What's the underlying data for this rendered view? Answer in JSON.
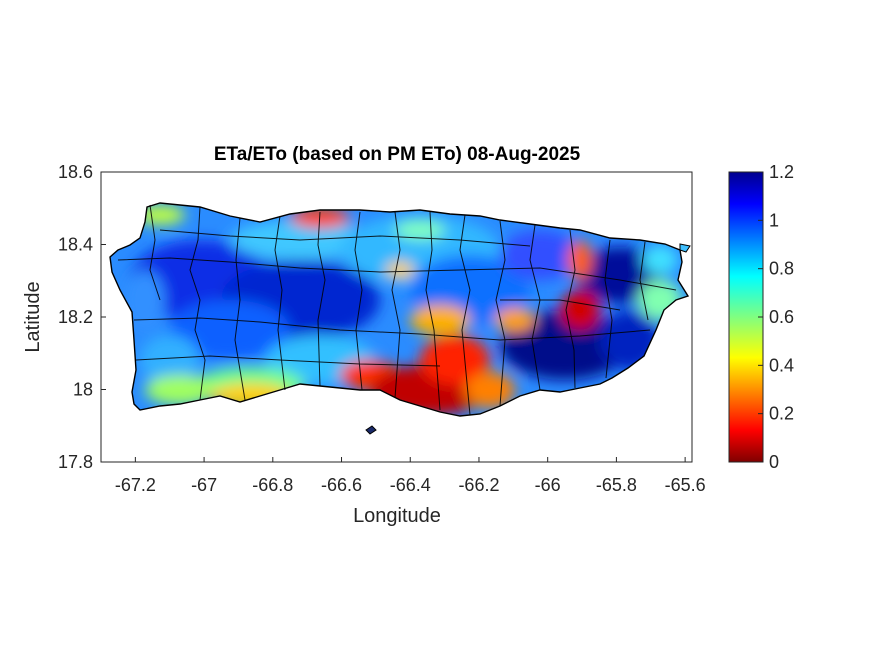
{
  "map": {
    "title": "ETa/ETo (based on PM ETo) 08-Aug-2025",
    "xlabel": "Longitude",
    "ylabel": "Latitude",
    "xlim": [
      -67.3,
      -65.58
    ],
    "ylim": [
      17.8,
      18.6
    ],
    "x_ticks": [
      -67.2,
      -67,
      -66.8,
      -66.6,
      -66.4,
      -66.2,
      -66,
      -65.8,
      -65.6
    ],
    "x_tick_labels": [
      "-67.2",
      "-67",
      "-66.8",
      "-66.6",
      "-66.4",
      "-66.2",
      "-66",
      "-65.8",
      "-65.6"
    ],
    "y_ticks": [
      18.6,
      18.4,
      18.2,
      18,
      17.8
    ],
    "y_tick_labels": [
      "18.6",
      "18.4",
      "18.2",
      "18",
      "17.8"
    ],
    "region": "Puerto Rico municipalities",
    "colormap": "jet",
    "colorbar": {
      "min": 0,
      "max": 1.2,
      "ticks": [
        1.2,
        1,
        0.8,
        0.6,
        0.4,
        0.2,
        0
      ],
      "tick_labels": [
        "1.2",
        "1",
        "0.8",
        "0.6",
        "0.4",
        "0.2",
        "0"
      ]
    },
    "colors": {
      "low": "#800000",
      "mid": "#00ffff",
      "high": "#00008f",
      "border": "#000000"
    }
  }
}
